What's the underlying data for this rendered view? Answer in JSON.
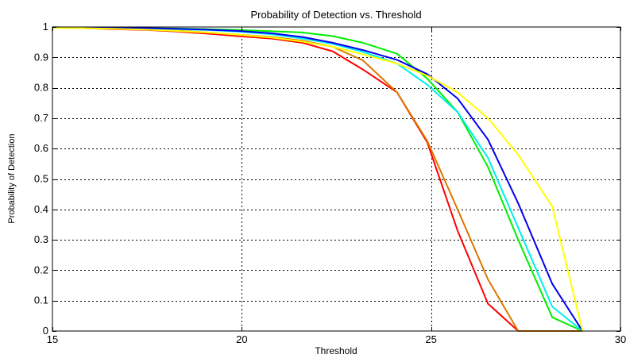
{
  "chart_data": {
    "type": "line",
    "title": "Probability of Detection vs. Threshold",
    "xlabel": "Threshold",
    "ylabel": "Probability of Detection",
    "xlim": [
      15,
      30
    ],
    "ylim": [
      0,
      1
    ],
    "xticks": [
      15,
      20,
      25,
      30
    ],
    "yticks": [
      0,
      0.1,
      0.2,
      0.3,
      0.4,
      0.5,
      0.6,
      0.7,
      0.8,
      0.9,
      1
    ],
    "grid": true,
    "x": [
      15,
      15.8,
      16.6,
      17.5,
      18.3,
      19.1,
      19.9,
      20.8,
      21.6,
      22.4,
      23.2,
      24.1,
      24.9,
      25.7,
      26.5,
      27.3,
      28.2,
      29
    ],
    "series": [
      {
        "color": "#ff0000",
        "values": [
          0.998,
          0.996,
          0.993,
          0.99,
          0.985,
          0.978,
          0.97,
          0.962,
          0.948,
          0.92,
          0.86,
          0.785,
          0.62,
          0.33,
          0.09,
          0.0,
          0.0,
          0.0
        ]
      },
      {
        "color": "#dd7700",
        "values": [
          0.998,
          0.997,
          0.995,
          0.992,
          0.988,
          0.982,
          0.975,
          0.967,
          0.955,
          0.935,
          0.89,
          0.785,
          0.625,
          0.4,
          0.17,
          0.0,
          0.0,
          0.0
        ]
      },
      {
        "color": "#00ee00",
        "values": [
          0.999,
          0.998,
          0.997,
          0.996,
          0.995,
          0.993,
          0.99,
          0.986,
          0.982,
          0.97,
          0.948,
          0.912,
          0.83,
          0.72,
          0.54,
          0.3,
          0.045,
          0.0
        ]
      },
      {
        "color": "#00eeee",
        "values": [
          0.999,
          0.998,
          0.997,
          0.995,
          0.993,
          0.99,
          0.985,
          0.976,
          0.962,
          0.945,
          0.918,
          0.88,
          0.81,
          0.72,
          0.57,
          0.34,
          0.08,
          0.0
        ]
      },
      {
        "color": "#0000ee",
        "values": [
          0.999,
          0.998,
          0.997,
          0.996,
          0.994,
          0.991,
          0.987,
          0.979,
          0.967,
          0.948,
          0.924,
          0.892,
          0.845,
          0.765,
          0.63,
          0.42,
          0.155,
          0.0
        ]
      },
      {
        "color": "#ffff00",
        "values": [
          0.997,
          0.996,
          0.994,
          0.991,
          0.987,
          0.982,
          0.975,
          0.965,
          0.952,
          0.935,
          0.91,
          0.88,
          0.84,
          0.785,
          0.7,
          0.58,
          0.41,
          0.0
        ]
      }
    ]
  }
}
